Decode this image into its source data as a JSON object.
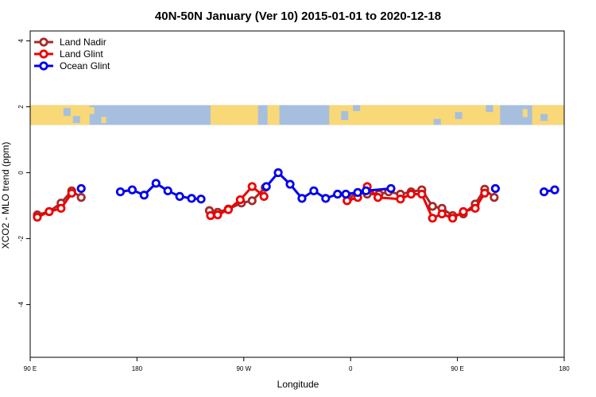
{
  "chart_data": {
    "type": "line",
    "title": "40N-50N January (Ver 10)   2015-01-01 to 2020-12-18",
    "xlabel": "Longitude",
    "ylabel": "XCO2 - MLO trend (ppm)",
    "x_tick_labels": [
      "90 E",
      "180",
      "90 W",
      "0",
      "90 E",
      "180"
    ],
    "y_tick_labels": [
      "-4",
      "-2",
      "0",
      "2",
      "4"
    ],
    "xlim": [
      90,
      540
    ],
    "ylim": [
      -5.6,
      4.3
    ],
    "legend_position": "top-left",
    "map_band": {
      "y_range": [
        1.45,
        2.05
      ],
      "land_color": "#f9d877",
      "ocean_color": "#a7bfdf"
    },
    "series": [
      {
        "name": "Land Nadir",
        "color": "#a52a2a",
        "segments": [
          [
            [
              96,
              -1.28
            ],
            [
              106,
              -1.18
            ],
            [
              116,
              -0.92
            ],
            [
              125,
              -0.55
            ],
            [
              133,
              -0.75
            ]
          ],
          [
            [
              241,
              -1.15
            ],
            [
              248,
              -1.2
            ],
            [
              257,
              -1.1
            ],
            [
              268,
              -0.92
            ],
            [
              277,
              -0.85
            ],
            [
              288,
              -0.45
            ]
          ],
          [
            [
              358,
              -0.78
            ],
            [
              366,
              -0.6
            ],
            [
              374,
              -0.65
            ],
            [
              384,
              -0.65
            ],
            [
              392,
              -0.58
            ],
            [
              402,
              -0.65
            ],
            [
              411,
              -0.58
            ],
            [
              420,
              -0.52
            ],
            [
              429,
              -1.02
            ],
            [
              437,
              -1.08
            ],
            [
              446,
              -1.3
            ],
            [
              455,
              -1.25
            ],
            [
              465,
              -0.95
            ],
            [
              473,
              -0.5
            ],
            [
              481,
              -0.75
            ]
          ]
        ]
      },
      {
        "name": "Land Glint",
        "color": "#ee0000",
        "segments": [
          [
            [
              96,
              -1.35
            ],
            [
              106,
              -1.18
            ],
            [
              116,
              -1.08
            ],
            [
              125,
              -0.62
            ]
          ],
          [
            [
              242,
              -1.3
            ],
            [
              248,
              -1.28
            ],
            [
              257,
              -1.12
            ],
            [
              267,
              -0.82
            ],
            [
              277,
              -0.42
            ],
            [
              287,
              -0.72
            ]
          ],
          [
            [
              357,
              -0.85
            ],
            [
              366,
              -0.75
            ],
            [
              374,
              -0.42
            ],
            [
              383,
              -0.75
            ],
            [
              402,
              -0.8
            ],
            [
              411,
              -0.65
            ],
            [
              420,
              -0.65
            ],
            [
              429,
              -1.38
            ],
            [
              437,
              -1.25
            ],
            [
              446,
              -1.38
            ],
            [
              455,
              -1.18
            ],
            [
              465,
              -1.08
            ],
            [
              473,
              -0.62
            ]
          ]
        ]
      },
      {
        "name": "Ocean Glint",
        "color": "#0000ee",
        "segments": [
          [
            [
              133,
              -0.48
            ]
          ],
          [
            [
              166,
              -0.58
            ],
            [
              176,
              -0.52
            ],
            [
              186,
              -0.68
            ],
            [
              196,
              -0.32
            ],
            [
              206,
              -0.55
            ],
            [
              216,
              -0.72
            ],
            [
              226,
              -0.78
            ],
            [
              234,
              -0.8
            ]
          ],
          [
            [
              289,
              -0.42
            ],
            [
              299,
              0.0
            ],
            [
              309,
              -0.35
            ],
            [
              319,
              -0.78
            ],
            [
              329,
              -0.55
            ],
            [
              339,
              -0.78
            ],
            [
              349,
              -0.65
            ],
            [
              356,
              -0.65
            ],
            [
              366,
              -0.6
            ],
            [
              373,
              -0.55
            ],
            [
              394,
              -0.48
            ]
          ],
          [
            [
              482,
              -0.48
            ]
          ],
          [
            [
              523,
              -0.58
            ],
            [
              532,
              -0.52
            ]
          ]
        ]
      }
    ]
  }
}
